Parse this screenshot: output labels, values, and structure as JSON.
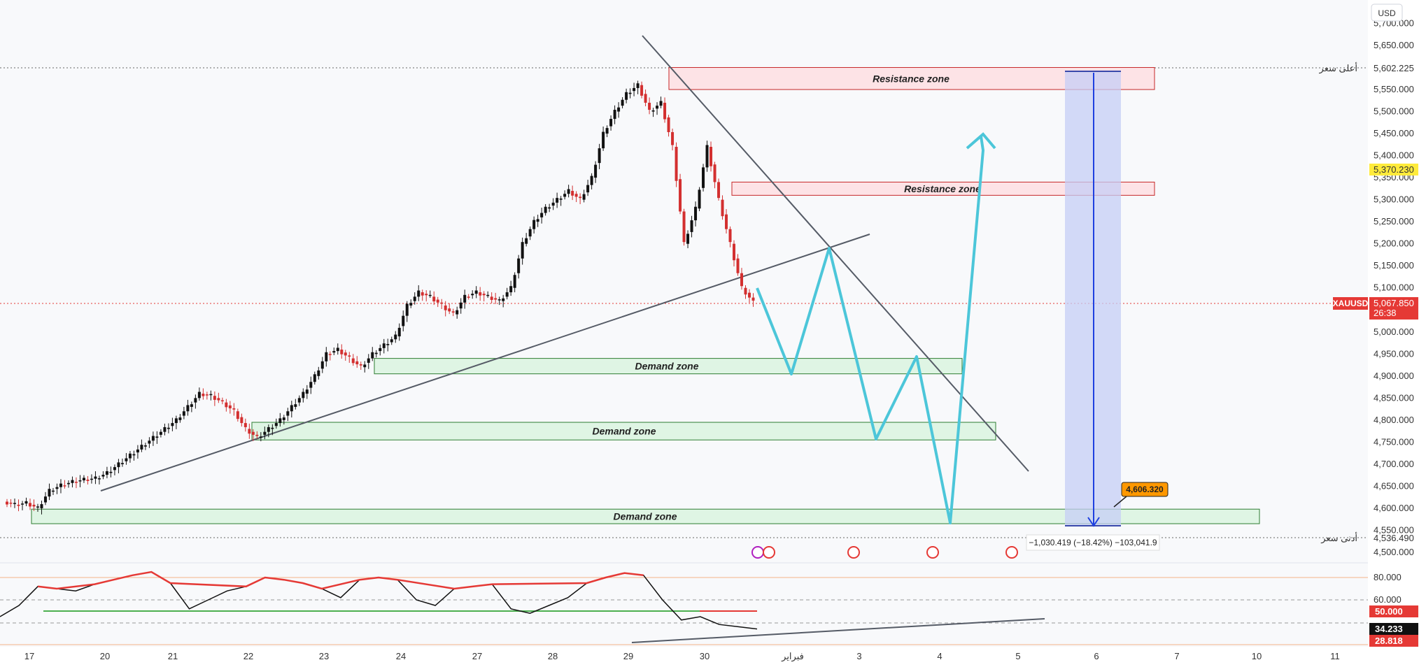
{
  "currency_button": "USD",
  "chart_data": {
    "type": "candlestick",
    "symbol": "XAUUSD",
    "last_price": "5,067.850",
    "countdown": "26:38",
    "high_label": "أعلى سعر",
    "high_value": "5,602.225",
    "low_label": "أدنى سعر",
    "low_value": "4,536.490",
    "marker_value": "5,370.230",
    "target_value": "4,606.320",
    "measure_text": "−1,030.419 (−18.42%) −103,041.9",
    "y_ticks": [
      "5,700.000",
      "5,650.000",
      "5,550.000",
      "5,500.000",
      "5,450.000",
      "5,400.000",
      "5,350.000",
      "5,300.000",
      "5,250.000",
      "5,200.000",
      "5,150.000",
      "5,100.000",
      "5,000.000",
      "4,950.000",
      "4,900.000",
      "4,850.000",
      "4,800.000",
      "4,750.000",
      "4,700.000",
      "4,650.000",
      "4,600.000",
      "4,550.000",
      "4,500.000"
    ],
    "x_ticks": [
      "17",
      "20",
      "21",
      "22",
      "23",
      "24",
      "27",
      "28",
      "29",
      "30",
      "فبراير",
      "3",
      "4",
      "5",
      "6",
      "7",
      "10",
      "11"
    ],
    "zones": [
      {
        "type": "resistance",
        "label": "Resistance  zone",
        "low": 5550,
        "high": 5600
      },
      {
        "type": "resistance",
        "label": "Resistance  zone",
        "low": 5310,
        "high": 5340
      },
      {
        "type": "demand",
        "label": "Demand zone",
        "low": 4905,
        "high": 4940
      },
      {
        "type": "demand",
        "label": "Demand zone",
        "low": 4755,
        "high": 4795
      },
      {
        "type": "demand",
        "label": "Demand zone",
        "low": 4565,
        "high": 4598
      }
    ],
    "candles_ohlc_close_path": [
      4615,
      4608,
      4612,
      4600,
      4640,
      4652,
      4660,
      4665,
      4668,
      4680,
      4700,
      4720,
      4740,
      4760,
      4780,
      4800,
      4830,
      4860,
      4855,
      4840,
      4820,
      4780,
      4760,
      4780,
      4800,
      4830,
      4860,
      4900,
      4950,
      4960,
      4940,
      4920,
      4950,
      4970,
      4990,
      5060,
      5090,
      5080,
      5060,
      5040,
      5080,
      5090,
      5080,
      5070,
      5100,
      5200,
      5250,
      5280,
      5300,
      5320,
      5300,
      5350,
      5450,
      5500,
      5540,
      5560,
      5500,
      5520,
      5420,
      5200,
      5280,
      5420,
      5300,
      5200,
      5100,
      5067
    ],
    "oscillator": {
      "levels": [
        "80.000",
        "60.000"
      ],
      "mid_value": "50.000",
      "current_value": "34.233",
      "low_value": "28.818",
      "values": [
        45,
        55,
        72,
        70,
        68,
        74,
        78,
        82,
        85,
        75,
        52,
        60,
        68,
        72,
        80,
        78,
        75,
        70,
        62,
        78,
        80,
        78,
        60,
        55,
        70,
        72,
        74,
        52,
        48,
        55,
        62,
        75,
        80,
        84,
        82,
        60,
        42,
        45,
        38,
        36,
        34
      ]
    }
  }
}
